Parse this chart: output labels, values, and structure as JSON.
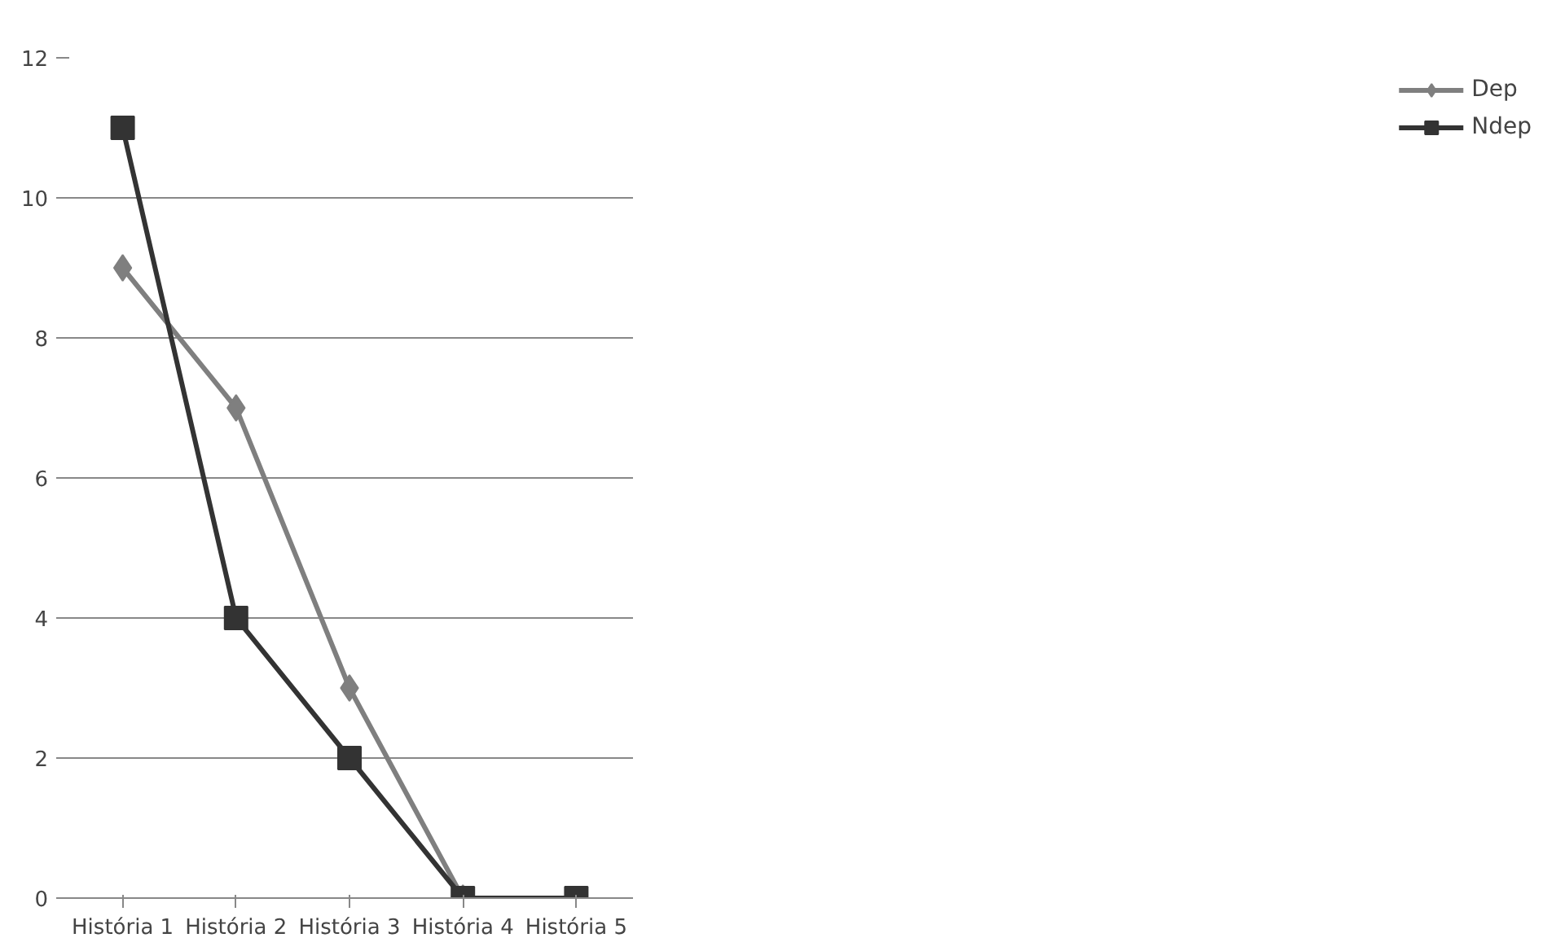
{
  "chart_data": {
    "type": "line",
    "categories": [
      "História 1",
      "História 2",
      "História 3",
      "História 4",
      "História 5"
    ],
    "series": [
      {
        "name": "Dep",
        "color": "#7f7f7f",
        "marker": "diamond",
        "values": [
          9,
          7,
          3,
          0,
          null
        ]
      },
      {
        "name": "Ndep",
        "color": "#333333",
        "marker": "square",
        "values": [
          11,
          4,
          2,
          0,
          0
        ]
      }
    ],
    "ylim": [
      0,
      12
    ],
    "yticks": [
      0,
      2,
      4,
      6,
      8,
      10,
      12
    ],
    "grid": "y",
    "legend": "right",
    "line_style": "solid"
  }
}
